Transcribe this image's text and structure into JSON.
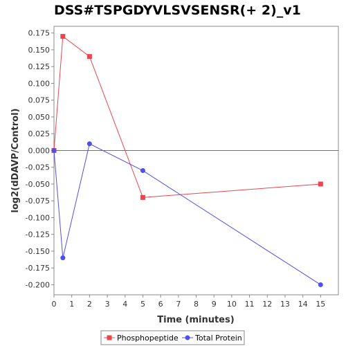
{
  "chart_data": {
    "type": "line",
    "title": "DSS#TSPGDYVLSVSENSR(+ 2)_v1",
    "xlabel": "Time (minutes)",
    "ylabel": "log2(dDAVP/Control)",
    "xlim": [
      0,
      16
    ],
    "ylim": [
      -0.215,
      0.185
    ],
    "xticks": [
      0,
      1,
      2,
      3,
      4,
      5,
      6,
      7,
      8,
      9,
      10,
      11,
      12,
      13,
      14,
      15
    ],
    "yticks": [
      0.175,
      0.15,
      0.125,
      0.1,
      0.075,
      0.05,
      0.025,
      0.0,
      -0.025,
      -0.05,
      -0.075,
      -0.1,
      -0.125,
      -0.15,
      -0.175,
      -0.2
    ],
    "ytick_labels": [
      "0.175",
      "0.150",
      "0.125",
      "0.100",
      "0.075",
      "0.050",
      "0.025",
      "0.000",
      "-0.025",
      "-0.050",
      "-0.075",
      "-0.100",
      "-0.125",
      "-0.150",
      "-0.175",
      "-0.200"
    ],
    "zero_line": true,
    "grid": false,
    "legend_position": "bottom",
    "series": [
      {
        "name": "Phosphopeptide",
        "color": "#e8474d",
        "marker": "square",
        "x": [
          0,
          0.5,
          2,
          5,
          15
        ],
        "y": [
          0.0,
          0.17,
          0.14,
          -0.07,
          -0.05
        ]
      },
      {
        "name": "Total Protein",
        "color": "#5050e8",
        "marker": "circle",
        "x": [
          0,
          0.5,
          2,
          5,
          15
        ],
        "y": [
          0.0,
          -0.16,
          0.01,
          -0.03,
          -0.2
        ]
      }
    ]
  }
}
